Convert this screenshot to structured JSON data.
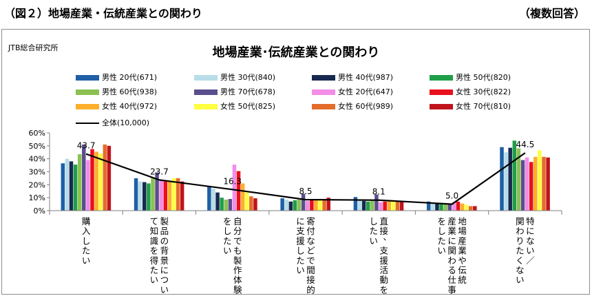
{
  "page": {
    "heading": "（図２）地場産業・伝統産業との関わり",
    "note": "（複数回答）",
    "source": "JTB総合研究所"
  },
  "chart_data": {
    "type": "bar",
    "title": "地場産業･伝統産業との関わり",
    "xlabel": "",
    "ylabel": "",
    "ylim": [
      0,
      60
    ],
    "yticks": [
      "0%",
      "10%",
      "20%",
      "30%",
      "40%",
      "50%",
      "60%"
    ],
    "grid": false,
    "legend_position": "top",
    "categories": [
      "購入したい",
      "製品の背景につい\nて知識を得たい",
      "自分でも製作体験\nをしたい",
      "寄付などで間接的\nに支援したい",
      "直接、支援活動を\nしたい",
      "地場産業や伝統\n産業に関わる仕事\nをしたい",
      "特にない/\n関わりたくない"
    ],
    "series": [
      {
        "name": "男性 20代(671)",
        "color": "#1f5fa6",
        "values": [
          36.5,
          25.0,
          19.0,
          9.5,
          10.5,
          7.0,
          49.0
        ]
      },
      {
        "name": "男性 30代(840)",
        "color": "#b7dde8",
        "values": [
          40.0,
          22.5,
          17.0,
          8.5,
          8.0,
          6.0,
          45.0
        ]
      },
      {
        "name": "男性 40代(987)",
        "color": "#17294f",
        "values": [
          38.0,
          22.0,
          14.0,
          7.0,
          7.5,
          5.5,
          48.5
        ]
      },
      {
        "name": "男性 50代(820)",
        "color": "#1f9e48",
        "values": [
          35.5,
          21.0,
          10.0,
          8.0,
          7.0,
          5.0,
          54.0
        ]
      },
      {
        "name": "男性 60代(938)",
        "color": "#8cc152",
        "values": [
          43.5,
          25.5,
          8.5,
          8.5,
          8.0,
          5.0,
          48.0
        ]
      },
      {
        "name": "男性 70代(678)",
        "color": "#5a4e8c",
        "values": [
          51.0,
          29.5,
          9.0,
          13.0,
          12.5,
          5.0,
          39.0
        ]
      },
      {
        "name": "女性 20代(647)",
        "color": "#f28de8",
        "values": [
          39.0,
          23.5,
          35.5,
          7.5,
          6.5,
          6.5,
          41.0
        ]
      },
      {
        "name": "女性 30代(822)",
        "color": "#e8101c",
        "values": [
          47.5,
          22.5,
          30.5,
          8.0,
          7.0,
          7.0,
          37.5
        ]
      },
      {
        "name": "女性 40代(972)",
        "color": "#fdaf2c",
        "values": [
          45.5,
          22.5,
          21.0,
          8.0,
          8.0,
          5.5,
          41.5
        ]
      },
      {
        "name": "女性 50代(825)",
        "color": "#ffff40",
        "values": [
          44.0,
          25.0,
          14.0,
          8.0,
          8.0,
          4.5,
          46.5
        ]
      },
      {
        "name": "女性 60代(989)",
        "color": "#e46c2a",
        "values": [
          51.0,
          25.0,
          11.0,
          9.0,
          7.5,
          3.5,
          41.5
        ]
      },
      {
        "name": "女性 70代(810)",
        "color": "#c0141c",
        "values": [
          50.0,
          22.5,
          9.5,
          10.0,
          7.0,
          3.5,
          41.0
        ]
      }
    ],
    "line_series": {
      "name": "全体(10,000)",
      "color": "#000000",
      "values": [
        43.7,
        23.7,
        16.3,
        8.5,
        8.1,
        5.0,
        44.5
      ],
      "labels": [
        "43.7",
        "23.7",
        "16.3",
        "8.5",
        "8.1",
        "5.0",
        "44.5"
      ]
    }
  }
}
